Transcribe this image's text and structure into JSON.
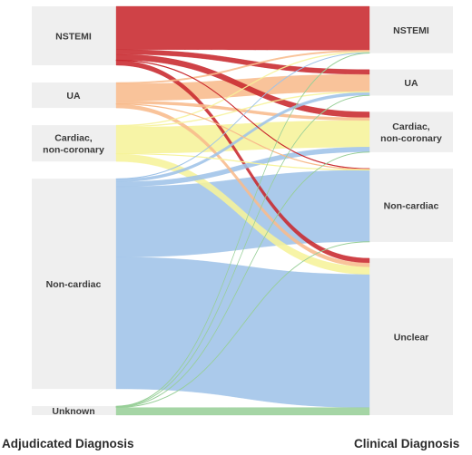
{
  "axes": {
    "left_title": "Adjudicated Diagnosis",
    "right_title": "Clinical Diagnosis"
  },
  "colors": {
    "node_fill": "#efefef",
    "nstemi": "#c8282e",
    "ua": "#f8bb8c",
    "cardiac_noncoronary": "#f6f39a",
    "non_cardiac": "#9fc3e8",
    "unknown": "#98cf98"
  },
  "chart_data": {
    "type": "sankey",
    "left_nodes": [
      {
        "id": "L_NSTEMI",
        "lines": [
          "NSTEMI"
        ],
        "color_key": "nstemi"
      },
      {
        "id": "L_UA",
        "lines": [
          "UA"
        ],
        "color_key": "ua"
      },
      {
        "id": "L_CNC",
        "lines": [
          "Cardiac,",
          "non-coronary"
        ],
        "color_key": "cardiac_noncoronary"
      },
      {
        "id": "L_NC",
        "lines": [
          "Non-cardiac"
        ],
        "color_key": "non_cardiac"
      },
      {
        "id": "L_UNK",
        "lines": [
          "Unknown"
        ],
        "color_key": "unknown"
      }
    ],
    "right_nodes": [
      {
        "id": "R_NSTEMI",
        "lines": [
          "NSTEMI"
        ]
      },
      {
        "id": "R_UA",
        "lines": [
          "UA"
        ]
      },
      {
        "id": "R_CNC",
        "lines": [
          "Cardiac,",
          "non-coronary"
        ]
      },
      {
        "id": "R_NC",
        "lines": [
          "Non-cardiac"
        ]
      },
      {
        "id": "R_UNCLEAR",
        "lines": [
          "Unclear"
        ]
      }
    ],
    "links": [
      {
        "source": "L_NSTEMI",
        "target": "R_NSTEMI",
        "value": 46
      },
      {
        "source": "L_NSTEMI",
        "target": "R_UA",
        "value": 5
      },
      {
        "source": "L_NSTEMI",
        "target": "R_CNC",
        "value": 6
      },
      {
        "source": "L_NSTEMI",
        "target": "R_NC",
        "value": 0.6
      },
      {
        "source": "L_NSTEMI",
        "target": "R_UNCLEAR",
        "value": 5
      },
      {
        "source": "L_UA",
        "target": "R_NSTEMI",
        "value": 1.5
      },
      {
        "source": "L_UA",
        "target": "R_UA",
        "value": 18
      },
      {
        "source": "L_UA",
        "target": "R_CNC",
        "value": 3
      },
      {
        "source": "L_UA",
        "target": "R_NC",
        "value": 0.6
      },
      {
        "source": "L_UA",
        "target": "R_UNCLEAR",
        "value": 4
      },
      {
        "source": "L_CNC",
        "target": "R_NSTEMI",
        "value": 1
      },
      {
        "source": "L_CNC",
        "target": "R_UA",
        "value": 1
      },
      {
        "source": "L_CNC",
        "target": "R_CNC",
        "value": 28
      },
      {
        "source": "L_CNC",
        "target": "R_NC",
        "value": 0.6
      },
      {
        "source": "L_CNC",
        "target": "R_UNCLEAR",
        "value": 8
      },
      {
        "source": "L_NC",
        "target": "R_NSTEMI",
        "value": 0.4
      },
      {
        "source": "L_NC",
        "target": "R_UA",
        "value": 3
      },
      {
        "source": "L_NC",
        "target": "R_CNC",
        "value": 5
      },
      {
        "source": "L_NC",
        "target": "R_NC",
        "value": 75
      },
      {
        "source": "L_NC",
        "target": "R_UNCLEAR",
        "value": 140
      },
      {
        "source": "L_UNK",
        "target": "R_NSTEMI",
        "value": 0.4
      },
      {
        "source": "L_UNK",
        "target": "R_UA",
        "value": 0.4
      },
      {
        "source": "L_UNK",
        "target": "R_CNC",
        "value": 0.4
      },
      {
        "source": "L_UNK",
        "target": "R_NC",
        "value": 0.4
      },
      {
        "source": "L_UNK",
        "target": "R_UNCLEAR",
        "value": 8
      }
    ]
  }
}
